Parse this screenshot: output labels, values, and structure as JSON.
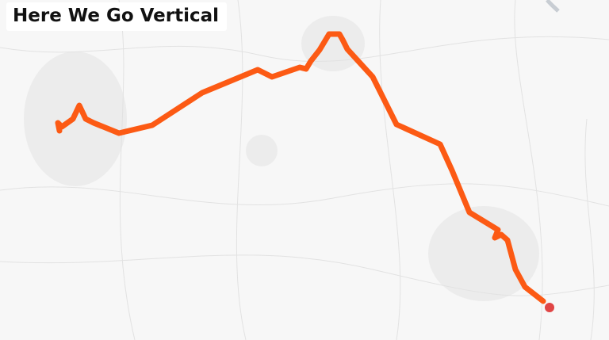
{
  "title": "Here We Go Vertical"
}
